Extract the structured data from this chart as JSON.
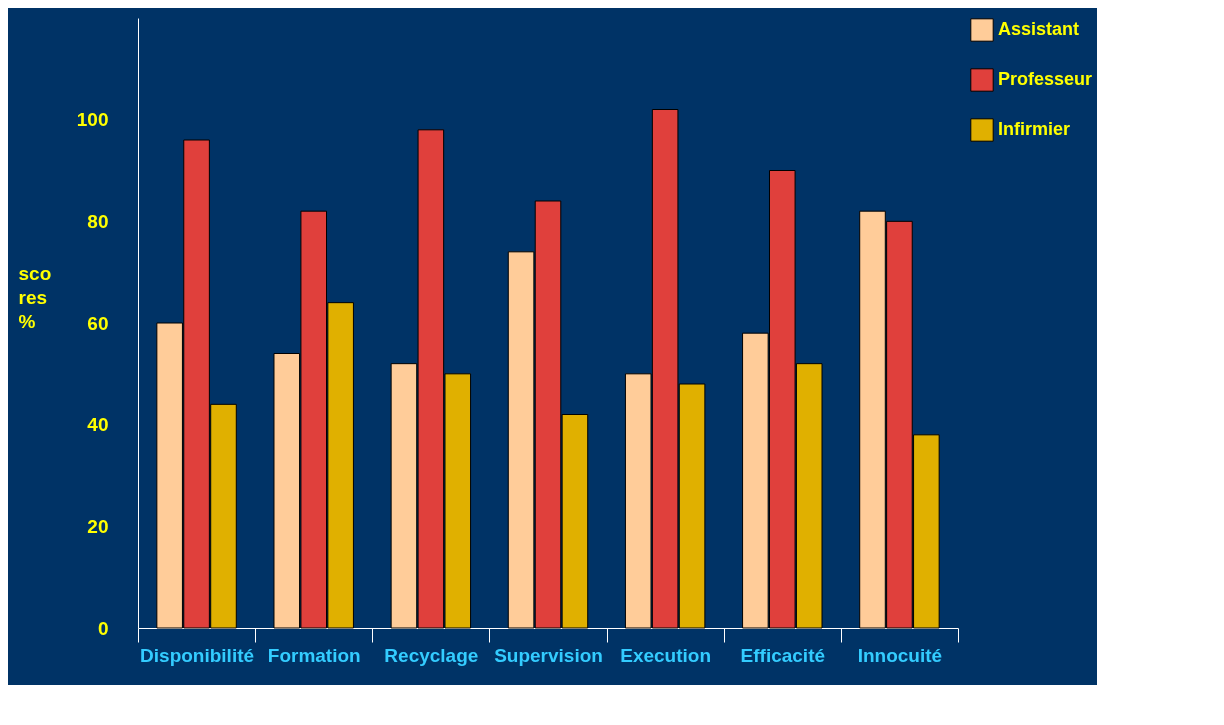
{
  "chart_data": {
    "type": "bar",
    "categories": [
      "Disponibilité",
      "Formation",
      "Recyclage",
      "Supervision",
      "Execution",
      "Efficacité",
      "Innocuité"
    ],
    "series": [
      {
        "name": "Assistant",
        "color": "#ffcc99",
        "values": [
          60,
          54,
          52,
          74,
          50,
          58,
          82
        ]
      },
      {
        "name": "Professeur",
        "color": "#e0403c",
        "values": [
          96,
          82,
          98,
          84,
          102,
          90,
          80
        ]
      },
      {
        "name": "Infirmier",
        "color": "#e0b000",
        "values": [
          44,
          64,
          50,
          42,
          48,
          52,
          38
        ]
      }
    ],
    "ylabel": "sco res %",
    "ylim": [
      0,
      120
    ],
    "yticks": [
      0,
      20,
      40,
      60,
      80,
      100
    ],
    "grid": false,
    "legend": "right"
  }
}
